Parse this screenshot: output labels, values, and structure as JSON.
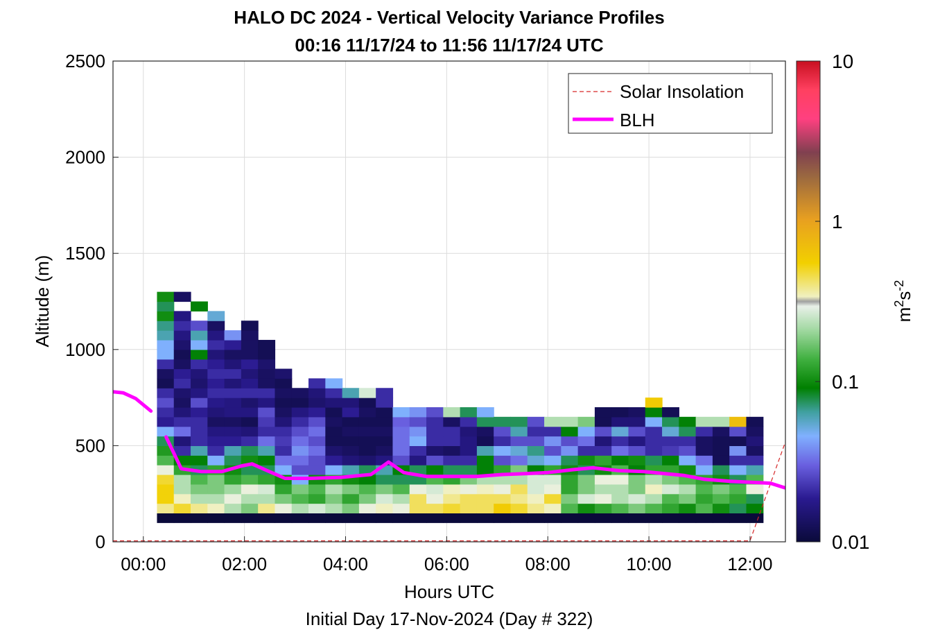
{
  "chart_data": {
    "type": "heatmap",
    "title": "HALO DC 2024 - Vertical Velocity Variance Profiles",
    "subtitle": "00:16 11/17/24 to 11:56 11/17/24  UTC",
    "xlabel": "Hours UTC",
    "xlabel2": "Initial Day 17-Nov-2024 (Day # 322)",
    "ylabel": "Altitude (m)",
    "xlim_hours": [
      -0.6,
      12.7
    ],
    "ylim": [
      0,
      2500
    ],
    "xticks": [
      0,
      2,
      4,
      6,
      8,
      10,
      12
    ],
    "xtick_labels": [
      "00:00",
      "02:00",
      "04:00",
      "06:00",
      "08:00",
      "10:00",
      "12:00"
    ],
    "yticks": [
      0,
      500,
      1000,
      1500,
      2000,
      2500
    ],
    "ytick_labels": [
      "0",
      "500",
      "1000",
      "1500",
      "2000",
      "2500"
    ],
    "grid": true,
    "legend_position": "top-right",
    "colorbar": {
      "scale": "log",
      "range": [
        0.01,
        10
      ],
      "ticks": [
        0.01,
        0.1,
        1,
        10
      ],
      "tick_labels": [
        "0.01",
        "0.1",
        "1",
        "10"
      ],
      "unit_base": "m",
      "unit_base_sup": "2",
      "unit_s": "s",
      "unit_s_sup": "-2"
    },
    "heatmap": {
      "column_start_hour": 0.27,
      "column_step_hour": 0.333,
      "row_height_m": 50,
      "first_row_bottom_m": 100,
      "note_values": "each column lists variance values in m2 s-2 from the lowest gate upward; null = no data",
      "columns": [
        [
          0.01,
          0.4,
          0.55,
          0.55,
          0.5,
          0.3,
          0.12,
          0.09,
          0.06,
          0.04,
          0.018,
          0.02,
          0.025,
          0.02,
          0.012,
          0.013,
          0.02,
          0.04,
          0.04,
          0.05,
          0.055,
          0.08,
          0.06,
          0.08
        ],
        [
          0.01,
          0.5,
          0.35,
          0.2,
          0.2,
          0.1,
          0.07,
          0.02,
          0.015,
          0.03,
          0.02,
          0.015,
          0.013,
          0.014,
          0.02,
          0.018,
          0.013,
          0.012,
          0.014,
          0.016,
          0.02,
          0.016,
          null,
          0.013
        ],
        [
          0.01,
          0.4,
          0.2,
          0.15,
          0.12,
          0.06,
          0.07,
          0.05,
          0.02,
          0.02,
          0.02,
          0.018,
          0.025,
          0.016,
          0.014,
          0.015,
          0.02,
          0.07,
          0.04,
          0.05,
          0.025,
          null,
          0.07,
          null
        ],
        [
          0.01,
          0.35,
          0.2,
          0.15,
          0.15,
          0.1,
          0.04,
          0.02,
          0.018,
          0.016,
          0.013,
          0.015,
          0.017,
          0.02,
          0.018,
          0.02,
          0.018,
          0.015,
          0.02,
          0.016,
          0.013,
          0.045,
          null,
          null
        ],
        [
          0.01,
          0.2,
          0.3,
          0.18,
          0.1,
          0.08,
          0.06,
          0.05,
          0.018,
          0.016,
          0.013,
          0.016,
          0.016,
          0.02,
          0.015,
          0.02,
          0.015,
          0.013,
          0.018,
          0.035,
          null,
          null,
          null,
          null
        ],
        [
          0.01,
          0.15,
          0.2,
          0.3,
          0.12,
          0.06,
          0.08,
          0.06,
          0.02,
          0.015,
          0.012,
          0.016,
          0.014,
          0.02,
          0.017,
          0.015,
          0.018,
          0.013,
          0.013,
          0.013,
          0.012,
          null,
          null,
          null
        ],
        [
          0.01,
          0.4,
          0.2,
          0.25,
          0.1,
          0.06,
          0.07,
          0.05,
          0.03,
          0.02,
          0.022,
          0.025,
          0.016,
          0.02,
          0.013,
          0.013,
          0.014,
          0.012,
          0.012,
          null,
          null,
          null,
          null,
          null
        ],
        [
          0.01,
          0.3,
          0.15,
          0.1,
          0.08,
          0.04,
          0.03,
          0.02,
          0.022,
          0.02,
          0.015,
          0.013,
          0.012,
          0.013,
          0.012,
          0.014,
          null,
          null,
          null,
          null,
          null,
          null,
          null,
          null
        ],
        [
          0.01,
          0.2,
          0.12,
          0.15,
          0.04,
          0.025,
          0.03,
          0.035,
          0.03,
          0.025,
          0.02,
          0.016,
          0.012,
          0.013,
          null,
          null,
          null,
          null,
          null,
          null,
          null,
          null,
          null,
          null
        ],
        [
          0.01,
          0.25,
          0.1,
          0.12,
          0.08,
          0.025,
          0.025,
          0.03,
          0.025,
          0.03,
          0.025,
          0.018,
          0.014,
          0.015,
          0.02,
          null,
          null,
          null,
          null,
          null,
          null,
          null,
          null,
          null
        ],
        [
          0.01,
          0.2,
          0.15,
          0.2,
          0.1,
          0.04,
          0.018,
          0.014,
          0.012,
          0.012,
          0.013,
          0.012,
          0.015,
          0.02,
          0.04,
          null,
          null,
          null,
          null,
          null,
          null,
          null,
          null,
          null
        ],
        [
          0.01,
          0.15,
          0.1,
          0.15,
          0.08,
          0.05,
          0.015,
          0.013,
          0.012,
          0.013,
          0.012,
          0.018,
          0.015,
          0.05,
          null,
          null,
          null,
          null,
          null,
          null,
          null,
          null,
          null,
          null
        ],
        [
          0.01,
          0.3,
          0.15,
          0.12,
          0.07,
          0.06,
          0.014,
          0.012,
          0.012,
          0.013,
          0.012,
          0.013,
          0.012,
          0.25,
          null,
          null,
          null,
          null,
          null,
          null,
          null,
          null,
          null,
          null
        ],
        [
          0.01,
          0.35,
          0.25,
          0.15,
          0.06,
          0.05,
          0.016,
          0.013,
          0.012,
          0.013,
          0.012,
          0.012,
          0.02,
          0.02,
          null,
          null,
          null,
          null,
          null,
          null,
          null,
          null,
          null,
          null
        ],
        [
          0.01,
          0.3,
          0.2,
          0.12,
          0.06,
          0.07,
          0.025,
          0.03,
          0.03,
          0.03,
          0.028,
          0.04,
          null,
          null,
          null,
          null,
          null,
          null,
          null,
          null,
          null,
          null,
          null,
          null
        ],
        [
          0.01,
          0.45,
          0.45,
          0.3,
          0.06,
          0.06,
          0.016,
          0.02,
          0.04,
          0.035,
          0.025,
          0.035,
          null,
          null,
          null,
          null,
          null,
          null,
          null,
          null,
          null,
          null,
          null,
          null
        ],
        [
          0.01,
          0.45,
          0.3,
          0.25,
          0.12,
          0.07,
          0.025,
          0.014,
          0.02,
          0.02,
          0.02,
          0.025,
          null,
          null,
          null,
          null,
          null,
          null,
          null,
          null,
          null,
          null,
          null,
          null
        ],
        [
          0.01,
          0.5,
          0.4,
          0.35,
          0.1,
          0.06,
          0.02,
          0.013,
          0.02,
          0.02,
          0.013,
          0.2,
          null,
          null,
          null,
          null,
          null,
          null,
          null,
          null,
          null,
          null,
          null,
          null
        ],
        [
          0.01,
          0.45,
          0.45,
          0.3,
          0.15,
          0.06,
          0.02,
          0.016,
          0.016,
          0.015,
          0.02,
          0.06,
          null,
          null,
          null,
          null,
          null,
          null,
          null,
          null,
          null,
          null,
          null,
          null
        ],
        [
          0.01,
          0.45,
          0.45,
          0.35,
          0.2,
          0.07,
          0.07,
          0.05,
          0.012,
          0.013,
          0.06,
          0.04,
          null,
          null,
          null,
          null,
          null,
          null,
          null,
          null,
          null,
          null,
          null,
          null
        ],
        [
          0.01,
          0.6,
          0.45,
          0.3,
          0.2,
          0.1,
          0.025,
          0.04,
          0.02,
          0.025,
          0.06,
          null,
          null,
          null,
          null,
          null,
          null,
          null,
          null,
          null,
          null,
          null,
          null,
          null
        ],
        [
          0.01,
          0.5,
          0.4,
          0.45,
          0.2,
          0.15,
          0.03,
          0.045,
          0.025,
          0.05,
          0.06,
          null,
          null,
          null,
          null,
          null,
          null,
          null,
          null,
          null,
          null,
          null,
          null,
          null
        ],
        [
          0.01,
          0.4,
          0.35,
          0.25,
          0.25,
          0.07,
          0.045,
          0.055,
          0.025,
          0.02,
          0.025,
          null,
          null,
          null,
          null,
          null,
          null,
          null,
          null,
          null,
          null,
          null,
          null,
          null
        ],
        [
          0.01,
          0.35,
          0.5,
          0.3,
          0.25,
          0.1,
          0.04,
          0.025,
          0.035,
          0.02,
          0.2,
          null,
          null,
          null,
          null,
          null,
          null,
          null,
          null,
          null,
          null,
          null,
          null,
          null
        ],
        [
          0.01,
          0.12,
          0.15,
          0.1,
          0.1,
          0.08,
          0.06,
          0.035,
          0.025,
          0.07,
          0.2,
          null,
          null,
          null,
          null,
          null,
          null,
          null,
          null,
          null,
          null,
          null,
          null,
          null
        ],
        [
          0.01,
          0.08,
          0.25,
          0.15,
          0.15,
          0.06,
          0.08,
          0.02,
          0.03,
          0.04,
          0.15,
          null,
          null,
          null,
          null,
          null,
          null,
          null,
          null,
          null,
          null,
          null,
          null,
          null
        ],
        [
          0.01,
          0.1,
          0.3,
          0.2,
          0.3,
          0.08,
          0.1,
          0.02,
          0.015,
          0.025,
          0.012,
          0.012,
          null,
          null,
          null,
          null,
          null,
          null,
          null,
          null,
          null,
          null,
          null,
          null
        ],
        [
          0.01,
          0.12,
          0.2,
          0.2,
          0.3,
          0.12,
          0.07,
          0.03,
          0.02,
          0.045,
          0.015,
          0.012,
          null,
          null,
          null,
          null,
          null,
          null,
          null,
          null,
          null,
          null,
          null,
          null
        ],
        [
          0.01,
          0.15,
          0.25,
          0.15,
          0.15,
          0.07,
          0.08,
          0.025,
          0.016,
          0.025,
          0.015,
          0.013,
          null,
          null,
          null,
          null,
          null,
          null,
          null,
          null,
          null,
          null,
          null,
          null
        ],
        [
          0.01,
          0.12,
          0.2,
          0.35,
          0.2,
          0.1,
          0.06,
          0.02,
          0.02,
          0.02,
          0.04,
          0.07,
          0.6,
          null,
          null,
          null,
          null,
          null,
          null,
          null,
          null,
          null,
          null,
          null
        ],
        [
          0.01,
          0.1,
          0.12,
          0.25,
          0.15,
          0.1,
          0.07,
          0.022,
          0.02,
          0.045,
          0.06,
          0.012,
          null,
          null,
          null,
          null,
          null,
          null,
          null,
          null,
          null,
          null,
          null,
          null
        ],
        [
          0.01,
          0.08,
          0.15,
          0.2,
          0.12,
          0.08,
          0.04,
          0.025,
          0.02,
          0.06,
          0.07,
          null,
          null,
          null,
          null,
          null,
          null,
          null,
          null,
          null,
          null,
          null,
          null,
          null
        ],
        [
          0.01,
          0.12,
          0.1,
          0.12,
          0.1,
          0.04,
          0.03,
          0.013,
          0.013,
          0.02,
          0.2,
          null,
          null,
          null,
          null,
          null,
          null,
          null,
          null,
          null,
          null,
          null,
          null,
          null
        ],
        [
          0.01,
          0.08,
          0.12,
          0.15,
          0.08,
          0.06,
          0.012,
          0.012,
          0.012,
          0.013,
          0.2,
          null,
          null,
          null,
          null,
          null,
          null,
          null,
          null,
          null,
          null,
          null,
          null,
          null
        ],
        [
          0.01,
          0.06,
          0.1,
          0.12,
          0.06,
          0.04,
          0.02,
          0.035,
          0.012,
          0.025,
          0.7,
          null,
          null,
          null,
          null,
          null,
          null,
          null,
          null,
          null,
          null,
          null,
          null,
          null
        ],
        [
          0.01,
          0.07,
          0.06,
          0.3,
          0.12,
          0.05,
          0.02,
          0.013,
          0.015,
          0.013,
          0.012,
          null,
          null,
          null,
          null,
          null,
          null,
          null,
          null,
          null,
          null,
          null,
          null,
          null
        ]
      ]
    },
    "series": [
      {
        "name": "Solar Insolation",
        "style": "dashed",
        "color": "#d62728",
        "x_hours": [
          -0.6,
          12.0,
          12.7
        ],
        "y_m": [
          5,
          5,
          520
        ]
      },
      {
        "name": "BLH",
        "style": "solid",
        "color": "#ff00ff",
        "segments": [
          {
            "x_hours": [
              -0.6,
              -0.4,
              -0.15,
              0.15
            ],
            "y_m": [
              780,
              775,
              745,
              680
            ]
          },
          {
            "x_hours": [
              0.45,
              0.75,
              1.15,
              1.55,
              1.95,
              2.15,
              2.45,
              2.8,
              3.3,
              3.9,
              4.5,
              4.85,
              5.15,
              5.6,
              6.1,
              6.6,
              7.1,
              7.6,
              8.0,
              8.5,
              8.9,
              9.4,
              9.9,
              10.3,
              10.7,
              11.1,
              11.6,
              12.0,
              12.4,
              12.7
            ],
            "y_m": [
              545,
              380,
              365,
              365,
              395,
              405,
              370,
              330,
              330,
              335,
              350,
              415,
              360,
              340,
              340,
              340,
              350,
              355,
              360,
              375,
              385,
              370,
              365,
              355,
              345,
              325,
              315,
              310,
              305,
              280
            ]
          }
        ]
      }
    ]
  }
}
